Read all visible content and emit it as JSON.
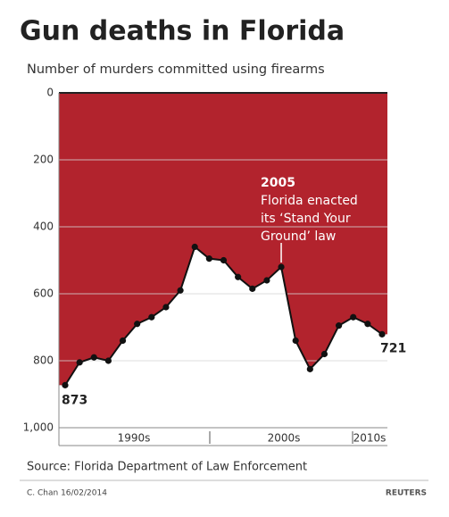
{
  "chart_data": {
    "type": "area-line",
    "title": "Gun deaths in Florida",
    "subtitle": "Number of murders committed using firearms",
    "categories": [
      null,
      null,
      null,
      null,
      null,
      null,
      null,
      null,
      null,
      null,
      null,
      null,
      null,
      null,
      null,
      null,
      null,
      null,
      null,
      null,
      null,
      null,
      null
    ],
    "x_axis_labels": [
      "1990s",
      "2000s",
      "2010s"
    ],
    "values": [
      873,
      805,
      790,
      800,
      740,
      690,
      670,
      640,
      590,
      460,
      495,
      500,
      550,
      585,
      560,
      520,
      740,
      825,
      780,
      695,
      670,
      690,
      721
    ],
    "ylim": [
      0,
      1000
    ],
    "inverted_y": true,
    "yticks": [
      0,
      200,
      400,
      600,
      800,
      {
        "value": 1000,
        "label": "1,000"
      }
    ],
    "grid": true,
    "fill_color": "#b2232d",
    "line_color": "#111111",
    "annotation": {
      "title": "2005",
      "lines": [
        "Florida enacted",
        "its ‘Stand Your",
        "Ground’ law"
      ]
    },
    "start_label": "873",
    "end_label": "721",
    "source": "Source: Florida Department of Law Enforcement",
    "credit": "C. Chan  16/02/2014",
    "brand": "REUTERS"
  }
}
